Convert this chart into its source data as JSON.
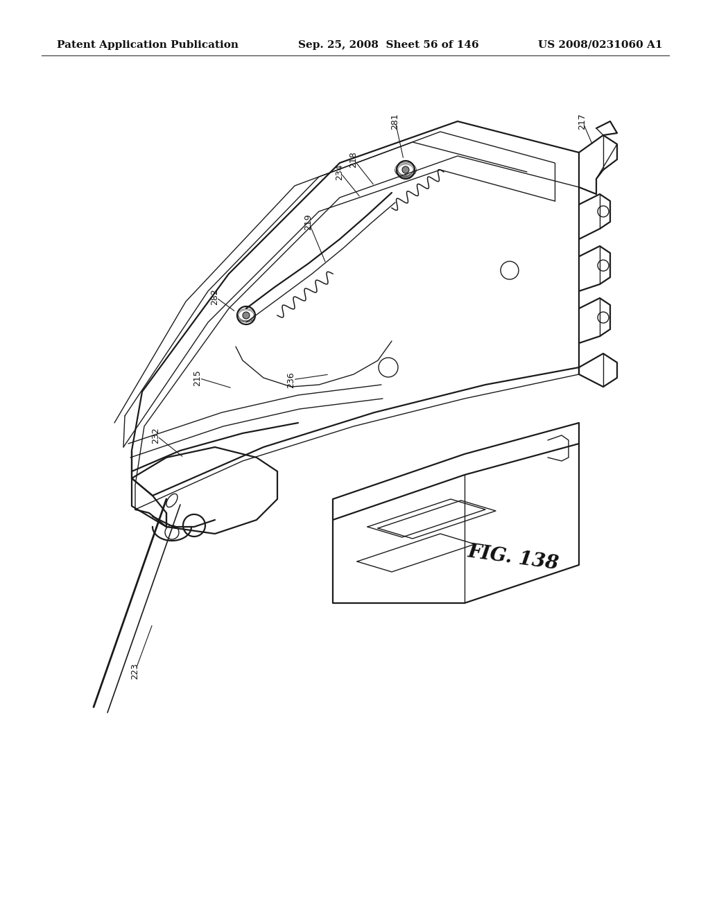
{
  "background_color": "#ffffff",
  "header_left": "Patent Application Publication",
  "header_center": "Sep. 25, 2008  Sheet 56 of 146",
  "header_right": "US 2008/0231060 A1",
  "fig_label": "FIG. 138",
  "header_fontsize": 11,
  "fig_label_fontsize": 20,
  "line_color": "#1a1a1a",
  "lw_main": 1.6,
  "lw_thin": 1.0,
  "lw_wire": 1.8
}
